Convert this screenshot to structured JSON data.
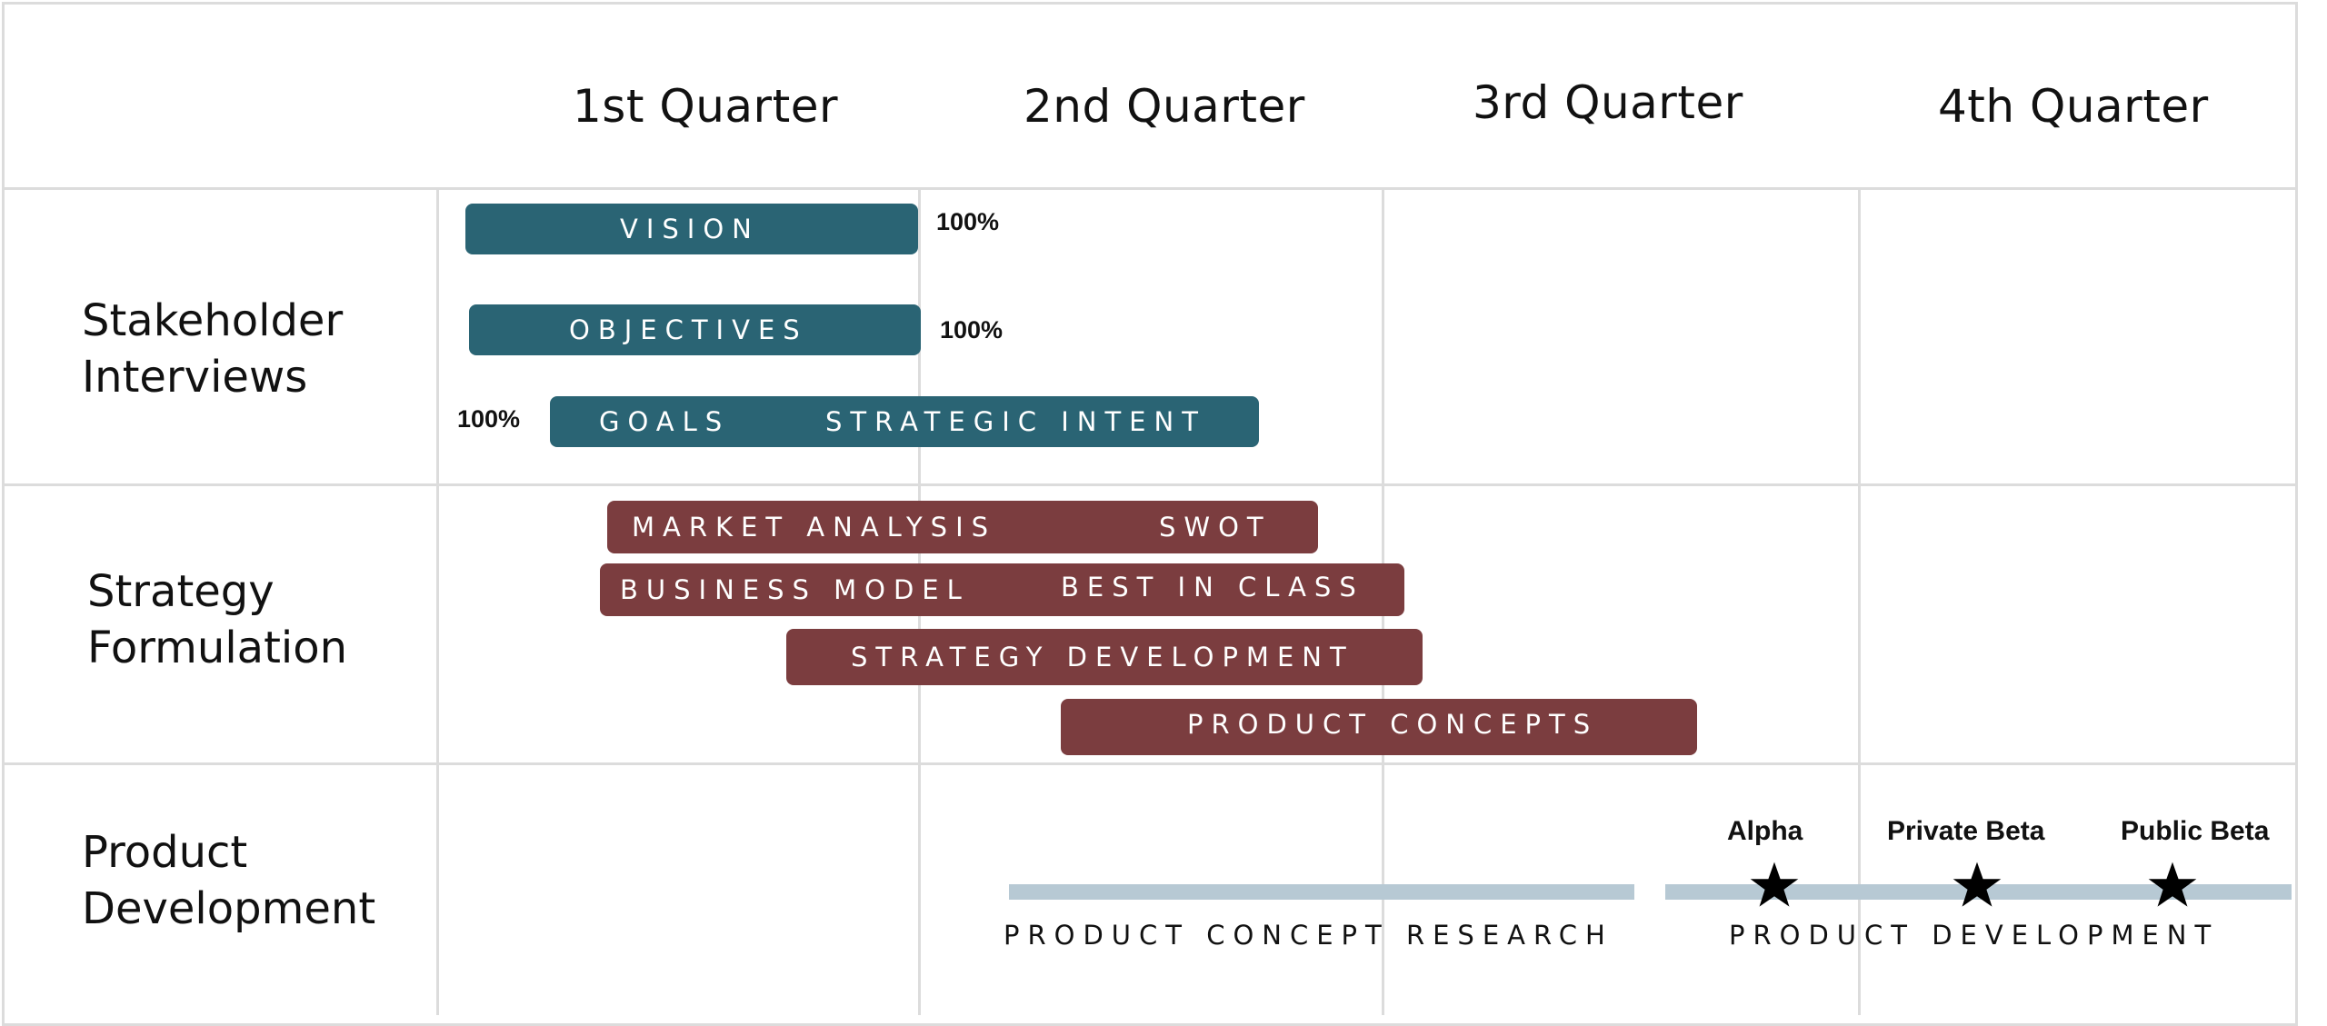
{
  "header": {
    "quarters": [
      "1st Quarter",
      "2nd Quarter",
      "3rd Quarter",
      "4th Quarter"
    ]
  },
  "rows": [
    {
      "label_line1": "Stakeholder",
      "label_line2": "Interviews"
    },
    {
      "label_line1": "Strategy",
      "label_line2": "Formulation"
    },
    {
      "label_line1": "Product",
      "label_line2": "Development"
    }
  ],
  "stakeholder_bars": [
    {
      "label": "VISION",
      "percent": "100%"
    },
    {
      "label": "OBJECTIVES",
      "percent": "100%"
    },
    {
      "label": "GOALS",
      "label2": "STRATEGIC INTENT",
      "percent": "100%"
    }
  ],
  "strategy_bars": [
    {
      "label": "MARKET ANALYSIS",
      "label2": "SWOT"
    },
    {
      "label": "BUSINESS MODEL",
      "label2": "BEST IN CLASS"
    },
    {
      "label": "STRATEGY DEVELOPMENT"
    },
    {
      "label": "PRODUCT CONCEPTS"
    }
  ],
  "product_tracks": [
    {
      "label": "PRODUCT CONCEPT RESEARCH"
    },
    {
      "label": "PRODUCT DEVELOPMENT"
    }
  ],
  "milestones": [
    {
      "label": "Alpha",
      "icon": "star-icon"
    },
    {
      "label": "Private Beta",
      "icon": "star-icon"
    },
    {
      "label": "Public Beta",
      "icon": "star-icon"
    }
  ],
  "colors": {
    "stakeholder_bar": "#2a6474",
    "strategy_bar": "#7b3d3f",
    "track": "#b7c9d4",
    "grid": "#dcdcdc"
  }
}
